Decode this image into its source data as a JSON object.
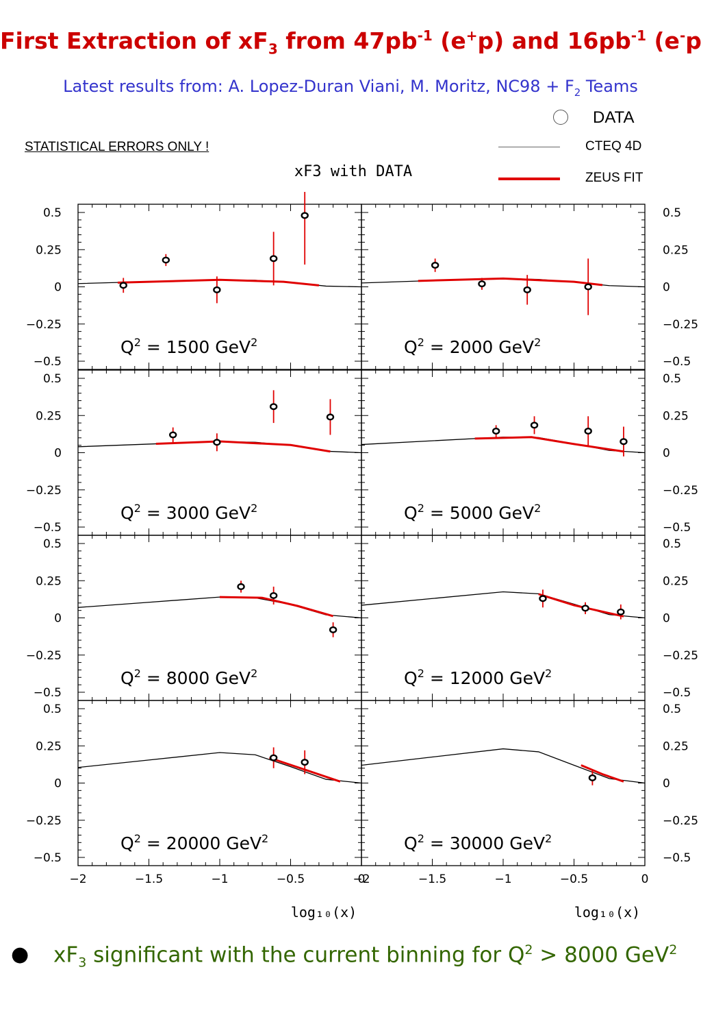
{
  "header": {
    "title_parts": [
      "First Extraction of xF",
      "3",
      " from 47pb",
      "-1",
      " (e",
      "+",
      "p) and 16pb",
      "-1",
      " (e",
      "-",
      "p)"
    ],
    "subtitle_main": "Latest results from: A. Lopez-Duran Viani, M. Moritz, NC98 + F",
    "subtitle_sub": "2",
    "subtitle_end": " Teams",
    "stat_note": "STATISTICAL ERRORS ONLY !"
  },
  "legend": {
    "data": "DATA",
    "cteq": "CTEQ 4D",
    "zeus": "ZEUS FIT"
  },
  "colors": {
    "title": "#cc0000",
    "subtitle": "#3333cc",
    "fit": "#e00000",
    "cteq": "#000000",
    "bottom": "#336600"
  },
  "footer": {
    "text_a": "xF",
    "sub": "3",
    "text_b": " significant with the current binning for Q",
    "sup1": "2",
    "text_c": " > 8000 GeV",
    "sup2": "2"
  },
  "chart_data": {
    "type": "scatter",
    "title": "xF3 with DATA",
    "xlabel": "log₁₀(x)",
    "xlim": [
      -2.0,
      0.0
    ],
    "ylim": [
      -0.5,
      0.5
    ],
    "xticks": [
      "−2",
      "−1.5",
      "−1",
      "−0.5",
      "0"
    ],
    "yticks": [
      "0.5",
      "0.25",
      "0",
      "−0.25",
      "−0.5"
    ],
    "panels": [
      {
        "label_pre": "Q",
        "label_sup": "2",
        "label_post": " = 1500 GeV",
        "label_sup2": "2",
        "points": [
          {
            "x": -1.68,
            "y": 0.01,
            "err": 0.05
          },
          {
            "x": -1.38,
            "y": 0.18,
            "err": 0.04
          },
          {
            "x": -1.02,
            "y": -0.02,
            "err": 0.09
          },
          {
            "x": -0.62,
            "y": 0.19,
            "err": 0.18
          },
          {
            "x": -0.4,
            "y": 0.48,
            "err": 0.33
          }
        ],
        "cteq": [
          [
            -2.0,
            0.022
          ],
          [
            -1.5,
            0.035
          ],
          [
            -1.0,
            0.047
          ],
          [
            -0.75,
            0.044
          ],
          [
            -0.5,
            0.03
          ],
          [
            -0.25,
            0.005
          ],
          [
            0.0,
            0.0
          ]
        ],
        "fit": [
          [
            -1.72,
            0.028
          ],
          [
            -1.0,
            0.047
          ],
          [
            -0.55,
            0.034
          ],
          [
            -0.3,
            0.01
          ]
        ]
      },
      {
        "label_pre": "Q",
        "label_sup": "2",
        "label_post": " = 2000 GeV",
        "label_sup2": "2",
        "points": [
          {
            "x": -1.48,
            "y": 0.145,
            "err": 0.045
          },
          {
            "x": -1.15,
            "y": 0.02,
            "err": 0.04
          },
          {
            "x": -0.83,
            "y": -0.02,
            "err": 0.1
          },
          {
            "x": -0.4,
            "y": 0.0,
            "err": 0.19
          }
        ],
        "cteq": [
          [
            -2.0,
            0.026
          ],
          [
            -1.5,
            0.042
          ],
          [
            -1.0,
            0.055
          ],
          [
            -0.75,
            0.05
          ],
          [
            -0.5,
            0.032
          ],
          [
            -0.25,
            0.008
          ],
          [
            0.0,
            0.0
          ]
        ],
        "fit": [
          [
            -1.6,
            0.04
          ],
          [
            -1.0,
            0.056
          ],
          [
            -0.5,
            0.034
          ],
          [
            -0.3,
            0.012
          ]
        ]
      },
      {
        "label_pre": "Q",
        "label_sup": "2",
        "label_post": " = 3000 GeV",
        "label_sup2": "2",
        "points": [
          {
            "x": -1.33,
            "y": 0.12,
            "err": 0.05
          },
          {
            "x": -1.02,
            "y": 0.07,
            "err": 0.06
          },
          {
            "x": -0.62,
            "y": 0.31,
            "err": 0.11
          },
          {
            "x": -0.22,
            "y": 0.24,
            "err": 0.12
          }
        ],
        "cteq": [
          [
            -2.0,
            0.04
          ],
          [
            -1.5,
            0.058
          ],
          [
            -1.0,
            0.075
          ],
          [
            -0.75,
            0.07
          ],
          [
            -0.5,
            0.05
          ],
          [
            -0.25,
            0.01
          ],
          [
            0.0,
            0.0
          ]
        ],
        "fit": [
          [
            -1.45,
            0.06
          ],
          [
            -1.0,
            0.076
          ],
          [
            -0.5,
            0.052
          ],
          [
            -0.22,
            0.008
          ]
        ]
      },
      {
        "label_pre": "Q",
        "label_sup": "2",
        "label_post": " = 5000 GeV",
        "label_sup2": "2",
        "points": [
          {
            "x": -1.05,
            "y": 0.145,
            "err": 0.04
          },
          {
            "x": -0.78,
            "y": 0.185,
            "err": 0.06
          },
          {
            "x": -0.4,
            "y": 0.145,
            "err": 0.1
          },
          {
            "x": -0.15,
            "y": 0.075,
            "err": 0.1
          }
        ],
        "cteq": [
          [
            -2.0,
            0.055
          ],
          [
            -1.5,
            0.08
          ],
          [
            -1.0,
            0.105
          ],
          [
            -0.75,
            0.102
          ],
          [
            -0.5,
            0.06
          ],
          [
            -0.25,
            0.015
          ],
          [
            0.0,
            0.0
          ]
        ],
        "fit": [
          [
            -1.2,
            0.095
          ],
          [
            -0.8,
            0.105
          ],
          [
            -0.5,
            0.058
          ],
          [
            -0.15,
            0.008
          ]
        ]
      },
      {
        "label_pre": "Q",
        "label_sup": "2",
        "label_post": " = 8000 GeV",
        "label_sup2": "2",
        "points": [
          {
            "x": -0.85,
            "y": 0.21,
            "err": 0.04
          },
          {
            "x": -0.62,
            "y": 0.15,
            "err": 0.06
          },
          {
            "x": -0.2,
            "y": -0.08,
            "err": 0.05
          }
        ],
        "cteq": [
          [
            -2.0,
            0.07
          ],
          [
            -1.5,
            0.105
          ],
          [
            -1.0,
            0.14
          ],
          [
            -0.75,
            0.135
          ],
          [
            -0.5,
            0.09
          ],
          [
            -0.25,
            0.02
          ],
          [
            0.0,
            0.0
          ]
        ],
        "fit": [
          [
            -1.0,
            0.14
          ],
          [
            -0.7,
            0.135
          ],
          [
            -0.45,
            0.08
          ],
          [
            -0.2,
            0.012
          ]
        ]
      },
      {
        "label_pre": "Q",
        "label_sup": "2",
        "label_post": " = 12000 GeV",
        "label_sup2": "2",
        "points": [
          {
            "x": -0.72,
            "y": 0.13,
            "err": 0.06
          },
          {
            "x": -0.42,
            "y": 0.065,
            "err": 0.04
          },
          {
            "x": -0.17,
            "y": 0.04,
            "err": 0.05
          }
        ],
        "cteq": [
          [
            -2.0,
            0.085
          ],
          [
            -1.5,
            0.13
          ],
          [
            -1.0,
            0.175
          ],
          [
            -0.75,
            0.162
          ],
          [
            -0.5,
            0.092
          ],
          [
            -0.25,
            0.022
          ],
          [
            0.0,
            0.0
          ]
        ],
        "fit": [
          [
            -0.75,
            0.16
          ],
          [
            -0.5,
            0.085
          ],
          [
            -0.15,
            0.01
          ]
        ]
      },
      {
        "label_pre": "Q",
        "label_sup": "2",
        "label_post": " = 20000 GeV",
        "label_sup2": "2",
        "points": [
          {
            "x": -0.62,
            "y": 0.17,
            "err": 0.07
          },
          {
            "x": -0.4,
            "y": 0.14,
            "err": 0.08
          }
        ],
        "cteq": [
          [
            -2.0,
            0.105
          ],
          [
            -1.5,
            0.155
          ],
          [
            -1.0,
            0.205
          ],
          [
            -0.75,
            0.19
          ],
          [
            -0.5,
            0.11
          ],
          [
            -0.25,
            0.025
          ],
          [
            0.0,
            0.0
          ]
        ],
        "fit": [
          [
            -0.65,
            0.17
          ],
          [
            -0.4,
            0.09
          ],
          [
            -0.15,
            0.01
          ]
        ]
      },
      {
        "label_pre": "Q",
        "label_sup": "2",
        "label_post": " = 30000 GeV",
        "label_sup2": "2",
        "points": [
          {
            "x": -0.37,
            "y": 0.035,
            "err": 0.05
          }
        ],
        "cteq": [
          [
            -2.0,
            0.12
          ],
          [
            -1.5,
            0.175
          ],
          [
            -1.0,
            0.23
          ],
          [
            -0.75,
            0.21
          ],
          [
            -0.5,
            0.12
          ],
          [
            -0.25,
            0.03
          ],
          [
            0.0,
            0.0
          ]
        ],
        "fit": [
          [
            -0.45,
            0.12
          ],
          [
            -0.3,
            0.06
          ],
          [
            -0.15,
            0.01
          ]
        ]
      }
    ]
  }
}
